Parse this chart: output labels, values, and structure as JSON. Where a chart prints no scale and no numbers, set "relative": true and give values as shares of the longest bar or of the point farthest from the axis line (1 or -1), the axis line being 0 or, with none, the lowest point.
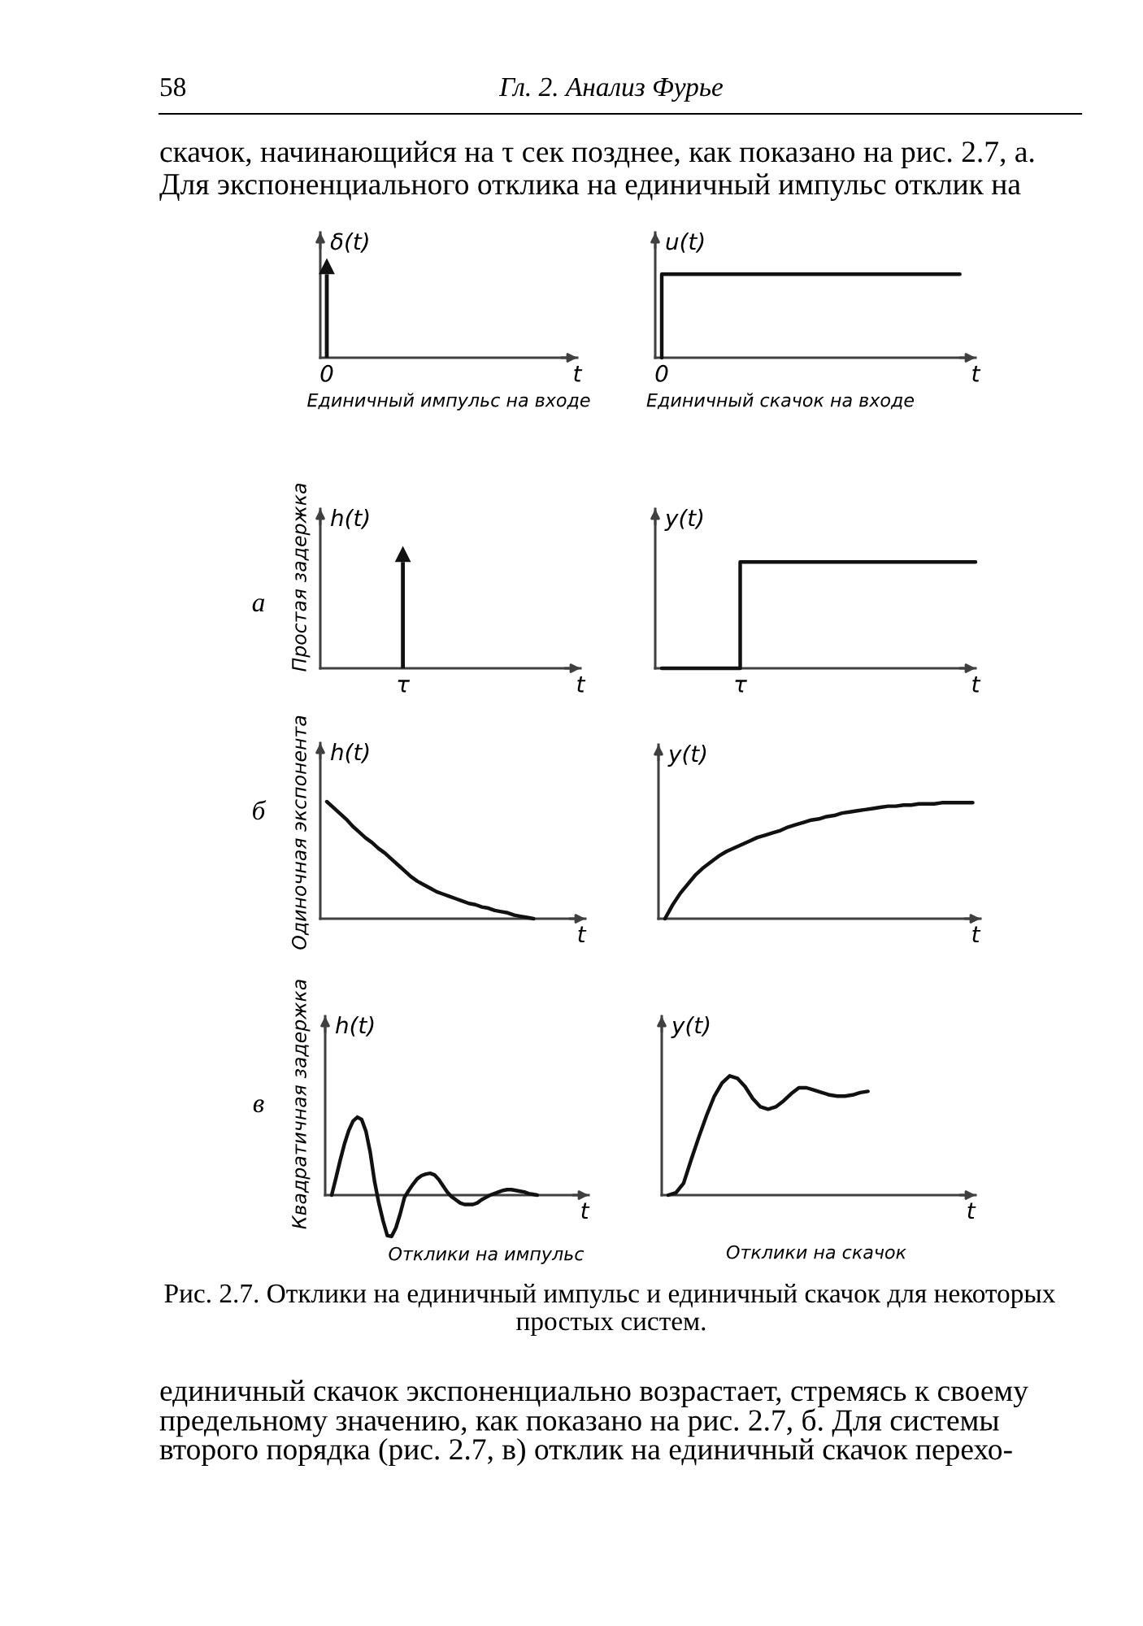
{
  "chart_data": [
    {
      "type": "bar",
      "relative": true,
      "marker": "triangle",
      "color": "#111111",
      "ylabel": "δ(t)",
      "title": "Единичный импульс на входе",
      "categories": [
        "0",
        null,
        null,
        null,
        null,
        null,
        null,
        null,
        null,
        null,
        null,
        null,
        null,
        null,
        null,
        null,
        null,
        null,
        null,
        null,
        "t"
      ],
      "values": [
        1,
        null,
        null,
        null,
        null,
        null,
        null,
        null,
        null,
        null,
        null,
        null,
        null,
        null,
        null,
        null,
        null,
        null,
        null,
        null,
        null
      ],
      "annotations": [
        "58",
        "Гл. 2. Анализ Фурье",
        "скачок, начинающийся на τ сек позднее, как показано на рис. 2.7, а.",
        "Для экспоненциального отклика на единичный импульс отклик на"
      ]
    },
    {
      "type": "step",
      "relative": true,
      "color": "#111111",
      "ylabel": "u(t)",
      "title": "Единичный скачок на входе",
      "categories": [
        "0",
        null,
        null,
        null,
        null,
        null,
        null,
        null,
        null,
        null,
        null,
        null,
        null,
        null,
        null,
        null,
        null,
        null,
        null,
        null,
        "t"
      ],
      "values": [
        0,
        1,
        1,
        1,
        1,
        1,
        1,
        1,
        1,
        1,
        1,
        1,
        1,
        1,
        1,
        1,
        1,
        1,
        1,
        1,
        null
      ]
    },
    {
      "type": "bar",
      "relative": true,
      "marker": "triangle",
      "color": "#111111",
      "ylabel": "h(t)",
      "categories": [
        null,
        null,
        null,
        null,
        null,
        null,
        "τ",
        null,
        null,
        null,
        null,
        null,
        null,
        null,
        null,
        null,
        null,
        null,
        null,
        null,
        "t"
      ],
      "values": [
        null,
        null,
        null,
        null,
        null,
        null,
        1,
        null,
        null,
        null,
        null,
        null,
        null,
        null,
        null,
        null,
        null,
        null,
        null,
        null,
        null
      ],
      "annotations": [
        "а",
        "Простая задержка"
      ]
    },
    {
      "type": "step",
      "relative": true,
      "color": "#111111",
      "ylabel": "y(t)",
      "categories": [
        null,
        null,
        null,
        null,
        null,
        "τ",
        null,
        null,
        null,
        null,
        null,
        null,
        null,
        null,
        null,
        null,
        null,
        null,
        null,
        null,
        "t"
      ],
      "values": [
        0,
        0,
        0,
        0,
        0,
        0,
        1,
        1,
        1,
        1,
        1,
        1,
        1,
        1,
        1,
        1,
        1,
        1,
        1,
        1,
        1
      ]
    },
    {
      "type": "line",
      "relative": true,
      "color": "#111111",
      "xlabel": "t",
      "ylabel": "h(t)",
      "categories": [
        null,
        null,
        null,
        null,
        null,
        null,
        null,
        null,
        null,
        null,
        null,
        null,
        null,
        null,
        null,
        null,
        null,
        null,
        null,
        null,
        null,
        null,
        null,
        null,
        null,
        null,
        null,
        null,
        null,
        null,
        null,
        null,
        null,
        null,
        null,
        null,
        null,
        null,
        null,
        null,
        null
      ],
      "values": [
        1,
        0.95,
        0.9,
        0.85,
        0.79,
        0.74,
        0.69,
        0.65,
        0.6,
        0.56,
        0.51,
        0.46,
        0.41,
        0.36,
        0.32,
        0.29,
        0.26,
        0.23,
        0.21,
        0.19,
        0.17,
        0.15,
        0.13,
        0.12,
        0.1,
        0.09,
        0.07,
        0.06,
        0.05,
        0.03,
        0.02,
        0.01,
        0,
        null,
        null,
        null,
        null,
        null,
        null,
        null,
        null
      ],
      "annotations": [
        "б",
        "Одиночная экспонента"
      ]
    },
    {
      "type": "line",
      "relative": true,
      "color": "#111111",
      "xlabel": "t",
      "ylabel": "y(t)",
      "categories": [
        null,
        null,
        null,
        null,
        null,
        null,
        null,
        null,
        null,
        null,
        null,
        null,
        null,
        null,
        null,
        null,
        null,
        null,
        null,
        null,
        null,
        null,
        null,
        null,
        null,
        null,
        null,
        null,
        null,
        null,
        null,
        null,
        null,
        null,
        null,
        null,
        null,
        null,
        null,
        null,
        null,
        null
      ],
      "values": [
        0,
        0.12,
        0.22,
        0.3,
        0.38,
        0.44,
        0.49,
        0.54,
        0.58,
        0.61,
        0.64,
        0.67,
        0.7,
        0.72,
        0.74,
        0.76,
        0.79,
        0.81,
        0.83,
        0.85,
        0.86,
        0.88,
        0.89,
        0.91,
        0.92,
        0.93,
        0.94,
        0.95,
        0.96,
        0.97,
        0.97,
        0.98,
        0.98,
        0.99,
        0.99,
        0.99,
        1,
        1,
        1,
        1,
        1,
        null
      ]
    },
    {
      "type": "line",
      "relative": true,
      "color": "#111111",
      "xlabel": "t",
      "ylabel": "h(t)",
      "title": "Отклики на импульс",
      "categories": [
        null,
        null,
        null,
        null,
        null,
        null,
        null,
        null,
        null,
        null,
        null,
        null,
        null,
        null,
        null,
        null,
        null,
        null,
        null,
        null,
        null,
        null,
        null,
        null,
        null,
        null,
        null,
        null,
        null,
        null,
        null,
        null,
        null,
        null,
        null,
        null,
        null,
        null,
        null,
        null,
        null,
        null,
        null,
        null,
        null,
        null,
        null,
        null,
        null,
        null,
        null,
        null,
        null,
        null,
        null,
        null,
        null,
        null,
        null,
        null,
        null
      ],
      "values": [
        0,
        0.22,
        0.45,
        0.66,
        0.83,
        0.95,
        1,
        0.97,
        0.82,
        0.55,
        0.18,
        -0.1,
        -0.33,
        -0.52,
        -0.53,
        -0.42,
        -0.24,
        -0.03,
        0.06,
        0.14,
        0.21,
        0.25,
        0.27,
        0.28,
        0.26,
        0.2,
        0.12,
        0.04,
        -0.02,
        -0.06,
        -0.1,
        -0.12,
        -0.12,
        -0.12,
        -0.1,
        -0.06,
        -0.03,
        0,
        0.02,
        0.04,
        0.06,
        0.07,
        0.07,
        0.06,
        0.05,
        0.04,
        0.02,
        0.01,
        0,
        null,
        null,
        null,
        null,
        null,
        null,
        null,
        null,
        null,
        null,
        null,
        null
      ],
      "annotations": [
        "в",
        "Квадратичная задержка"
      ]
    },
    {
      "type": "line",
      "relative": true,
      "color": "#111111",
      "xlabel": "t",
      "ylabel": "y(t)",
      "title": "Отклики на скачок",
      "categories": [
        null,
        null,
        null,
        null,
        null,
        null,
        null,
        null,
        null,
        null,
        null,
        null,
        null,
        null,
        null,
        null,
        null,
        null,
        null,
        null,
        null,
        null,
        null,
        null,
        null,
        null,
        null,
        null,
        null,
        null,
        null,
        null,
        null,
        null,
        null,
        null,
        null,
        null,
        null,
        null,
        null
      ],
      "values": [
        0,
        0.02,
        0.1,
        0.3,
        0.49,
        0.67,
        0.83,
        0.94,
        1,
        0.98,
        0.91,
        0.81,
        0.74,
        0.72,
        0.74,
        0.79,
        0.85,
        0.9,
        0.9,
        0.88,
        0.86,
        0.84,
        0.83,
        0.83,
        0.84,
        0.86,
        0.87,
        null,
        null,
        null,
        null,
        null,
        null,
        null,
        null,
        null,
        null,
        null,
        null,
        null,
        null
      ],
      "annotations": [
        "Рис. 2.7. Отклики на единичный импульс и единичный скачок для некоторых",
        "простых систем.",
        "единичный скачок экспоненциально возрастает, стремясь к своему",
        "предельному значению, как показано на рис. 2.7, б. Для системы",
        "второго порядка (рис. 2.7, в) отклик на единичный скачок перехо-"
      ]
    }
  ]
}
